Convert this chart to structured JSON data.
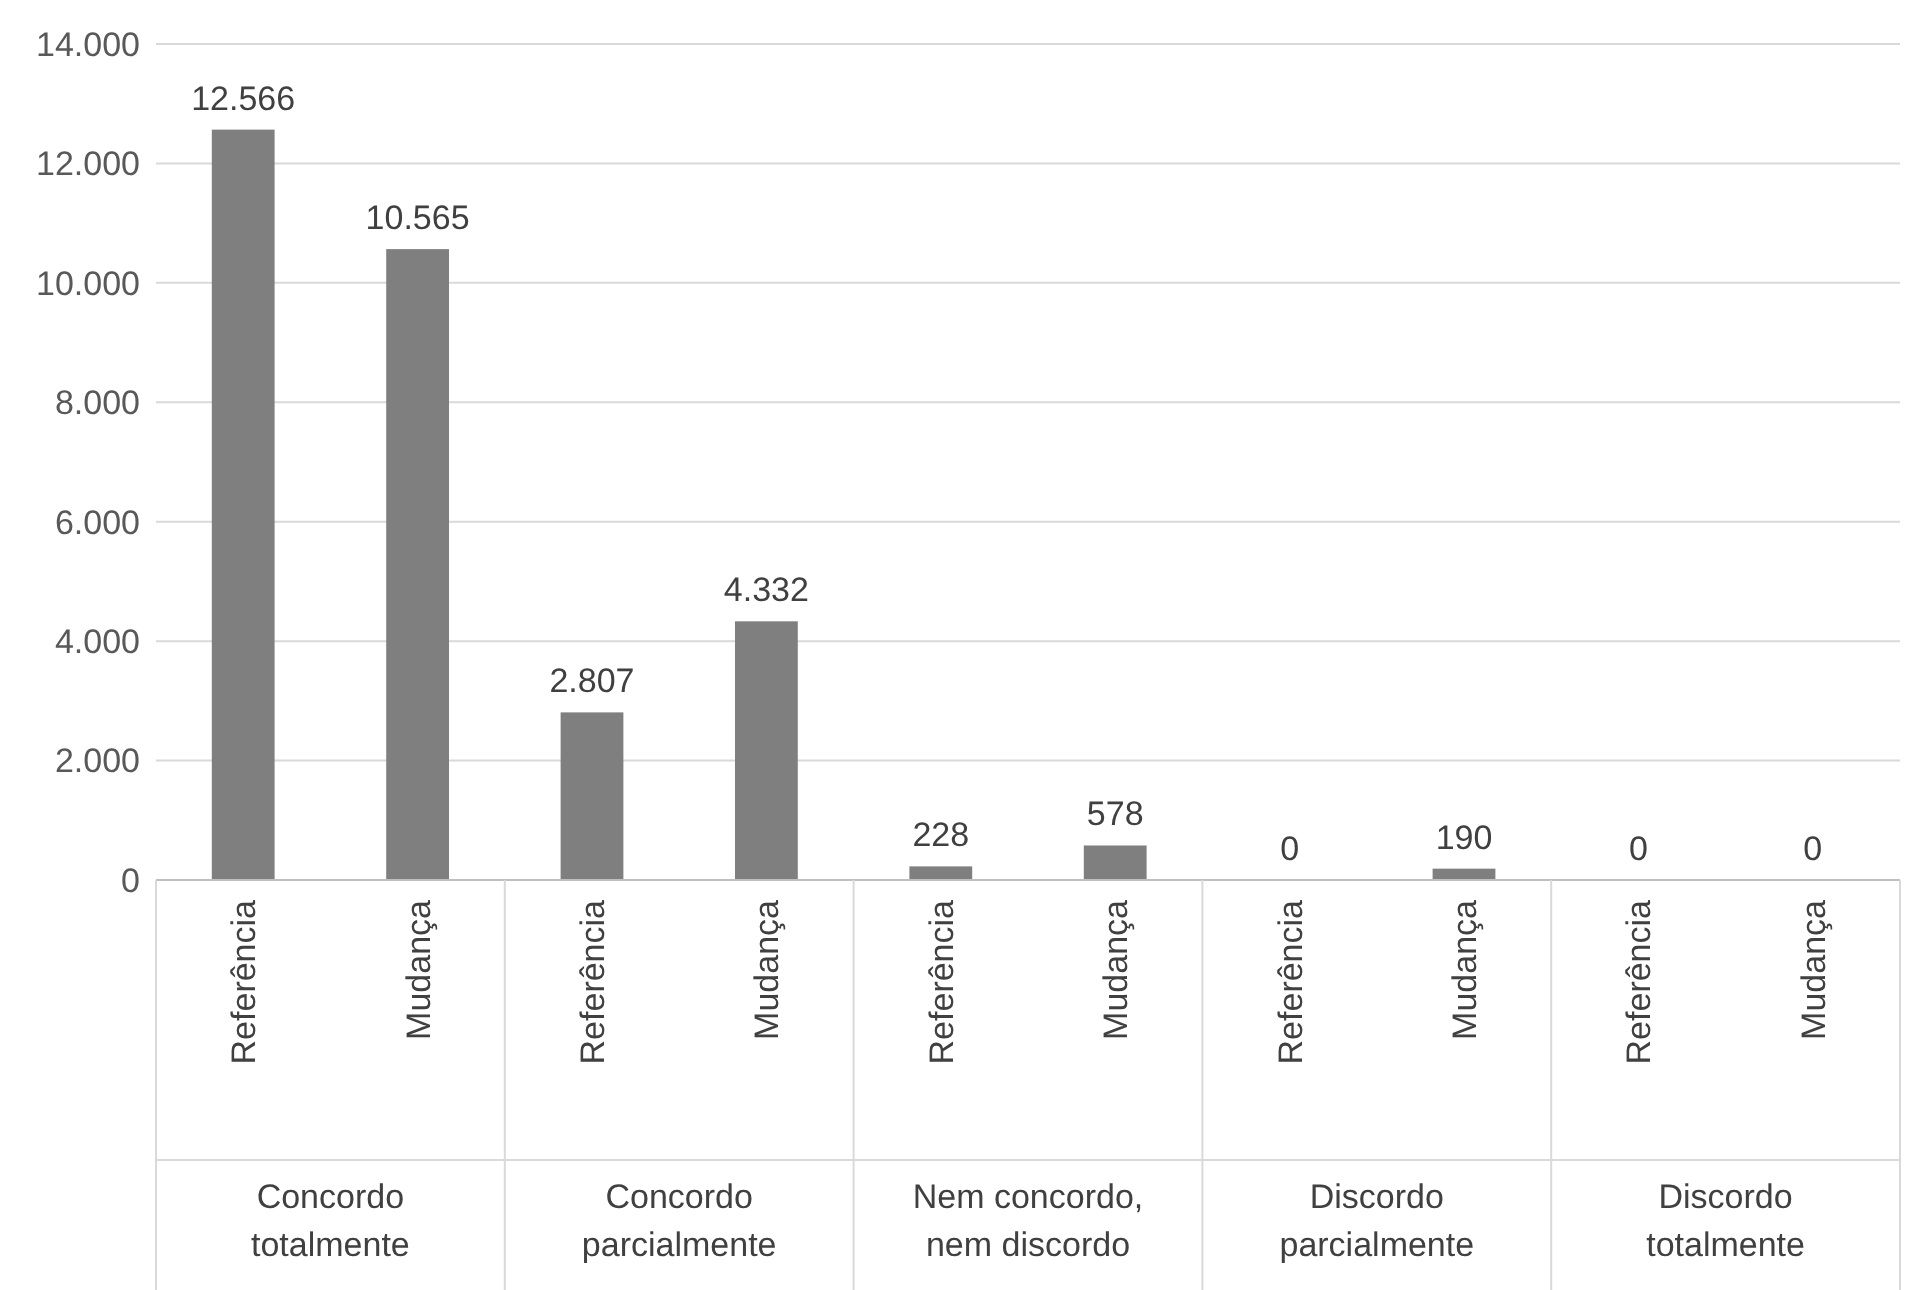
{
  "chart_data": {
    "type": "bar",
    "categories": [
      "Referência",
      "Mudança",
      "Referência",
      "Mudança",
      "Referência",
      "Mudança",
      "Referência",
      "Mudança",
      "Referência",
      "Mudança"
    ],
    "values": [
      12566,
      10565,
      2807,
      4332,
      228,
      578,
      0,
      190,
      0,
      0
    ],
    "value_labels": [
      "12.566",
      "10.565",
      "2.807",
      "4.332",
      "228",
      "578",
      "0",
      "190",
      "0",
      "0"
    ],
    "color": "#7f7f7f",
    "ylim": [
      0,
      14000
    ],
    "yticks": [
      {
        "value": 0,
        "label": "0"
      },
      {
        "value": 2000,
        "label": "2.000"
      },
      {
        "value": 4000,
        "label": "4.000"
      },
      {
        "value": 6000,
        "label": "6.000"
      },
      {
        "value": 8000,
        "label": "8.000"
      },
      {
        "value": 10000,
        "label": "10.000"
      },
      {
        "value": 12000,
        "label": "12.000"
      },
      {
        "value": 14000,
        "label": "14.000"
      }
    ],
    "grid": "y",
    "annotations": [
      "Concordo totalmente",
      "Concordo parcialmente",
      "Nem concordo, nem discordo",
      "Discordo parcialmente",
      "Discordo totalmente"
    ]
  }
}
